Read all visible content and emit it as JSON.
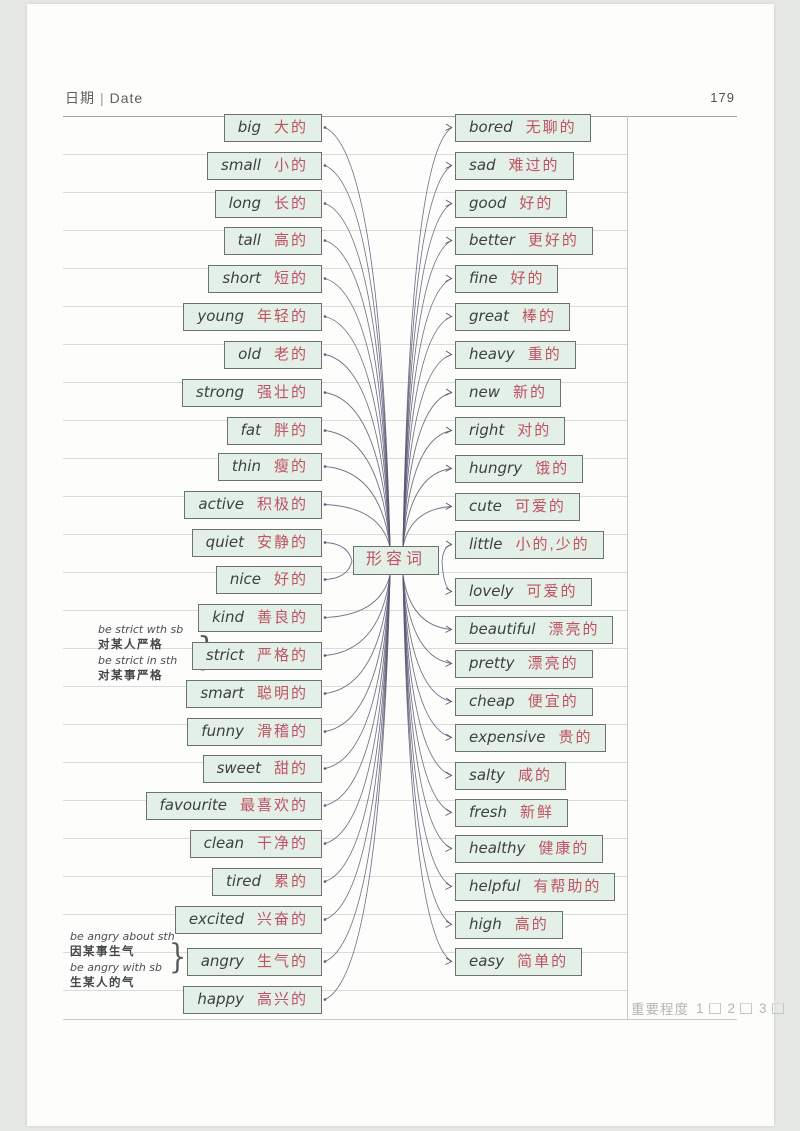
{
  "header": {
    "date_label": "日期",
    "date_word": "Date",
    "page_number": "179"
  },
  "center": {
    "label": "形容词"
  },
  "left_items": [
    {
      "en": "big",
      "zh": "大的"
    },
    {
      "en": "small",
      "zh": "小的"
    },
    {
      "en": "long",
      "zh": "长的"
    },
    {
      "en": "tall",
      "zh": "高的"
    },
    {
      "en": "short",
      "zh": "短的"
    },
    {
      "en": "young",
      "zh": "年轻的"
    },
    {
      "en": "old",
      "zh": "老的"
    },
    {
      "en": "strong",
      "zh": "强壮的"
    },
    {
      "en": "fat",
      "zh": "胖的"
    },
    {
      "en": "thin",
      "zh": "瘦的"
    },
    {
      "en": "active",
      "zh": "积极的"
    },
    {
      "en": "quiet",
      "zh": "安静的"
    },
    {
      "en": "nice",
      "zh": "好的"
    },
    {
      "en": "kind",
      "zh": "善良的"
    },
    {
      "en": "strict",
      "zh": "严格的"
    },
    {
      "en": "smart",
      "zh": "聪明的"
    },
    {
      "en": "funny",
      "zh": "滑稽的"
    },
    {
      "en": "sweet",
      "zh": "甜的"
    },
    {
      "en": "favourite",
      "zh": "最喜欢的"
    },
    {
      "en": "clean",
      "zh": "干净的"
    },
    {
      "en": "tired",
      "zh": "累的"
    },
    {
      "en": "excited",
      "zh": "兴奋的"
    },
    {
      "en": "angry",
      "zh": "生气的"
    },
    {
      "en": "happy",
      "zh": "高兴的"
    }
  ],
  "right_items": [
    {
      "en": "bored",
      "zh": "无聊的"
    },
    {
      "en": "sad",
      "zh": "难过的"
    },
    {
      "en": "good",
      "zh": "好的"
    },
    {
      "en": "better",
      "zh": "更好的"
    },
    {
      "en": "fine",
      "zh": "好的"
    },
    {
      "en": "great",
      "zh": "棒的"
    },
    {
      "en": "heavy",
      "zh": "重的"
    },
    {
      "en": "new",
      "zh": "新的"
    },
    {
      "en": "right",
      "zh": "对的"
    },
    {
      "en": "hungry",
      "zh": "饿的"
    },
    {
      "en": "cute",
      "zh": "可爱的"
    },
    {
      "en": "little",
      "zh": "小的,少的"
    },
    {
      "en": "lovely",
      "zh": "可爱的"
    },
    {
      "en": "beautiful",
      "zh": "漂亮的"
    },
    {
      "en": "pretty",
      "zh": "漂亮的"
    },
    {
      "en": "cheap",
      "zh": "便宜的"
    },
    {
      "en": "expensive",
      "zh": "贵的"
    },
    {
      "en": "salty",
      "zh": "咸的"
    },
    {
      "en": "fresh",
      "zh": "新鲜"
    },
    {
      "en": "healthy",
      "zh": "健康的"
    },
    {
      "en": "helpful",
      "zh": "有帮助的"
    },
    {
      "en": "high",
      "zh": "高的"
    },
    {
      "en": "easy",
      "zh": "简单的"
    }
  ],
  "annotations": {
    "strict": {
      "lines": [
        "be strict wth sb",
        "对某人严格",
        "be strict in sth",
        "对某事严格"
      ]
    },
    "angry": {
      "lines": [
        "be angry about sth",
        "因某事生气",
        "be angry with sb",
        "生某人的气"
      ]
    },
    "brace_glyph": "}"
  },
  "footer": {
    "importance_label": "重要程度",
    "levels": [
      "1",
      "2",
      "3"
    ]
  },
  "colors": {
    "box_bg": "#e3f0e8",
    "box_border": "#6e726f",
    "english": "#3c4043",
    "chinese": "#c05263",
    "connector": "#5d5774"
  }
}
